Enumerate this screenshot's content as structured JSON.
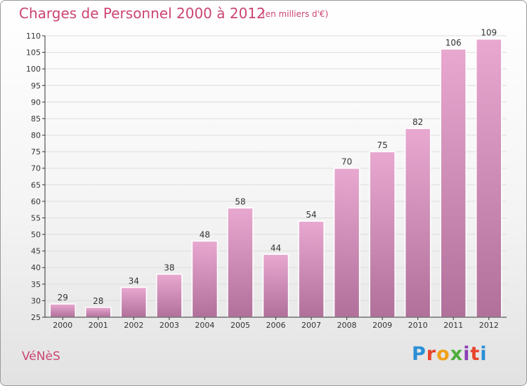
{
  "header": {
    "title": "Charges de Personnel 2000 à 2012",
    "subtitle": "(en milliers d'€)"
  },
  "footer": {
    "commune": "VéNèS",
    "brand_letters": [
      "P",
      "r",
      "o",
      "x",
      "i",
      "t",
      "i"
    ],
    "brand_colors": [
      "#2a8fd6",
      "#e8432b",
      "#f2a017",
      "#4caf3a",
      "#8d3fb5",
      "#e8432b",
      "#2a8fd6"
    ]
  },
  "colors": {
    "bar_top": "#e8a8d0",
    "bar_bottom": "#b0709a",
    "bar_edge": "#ffffff",
    "axis": "#333333",
    "grid": "#dddddd"
  },
  "chart_data": {
    "type": "bar",
    "title": "Charges de Personnel 2000 à 2012",
    "subtitle": "(en milliers d'€)",
    "categories": [
      "2000",
      "2001",
      "2002",
      "2003",
      "2004",
      "2005",
      "2006",
      "2007",
      "2008",
      "2009",
      "2010",
      "2011",
      "2012"
    ],
    "values": [
      29,
      28,
      34,
      38,
      48,
      58,
      44,
      54,
      70,
      75,
      82,
      106,
      109
    ],
    "ylim": [
      25,
      110
    ],
    "yticks": [
      25,
      30,
      35,
      40,
      45,
      50,
      55,
      60,
      65,
      70,
      75,
      80,
      85,
      90,
      95,
      100,
      105,
      110
    ],
    "grid": true,
    "data_labels": true
  }
}
